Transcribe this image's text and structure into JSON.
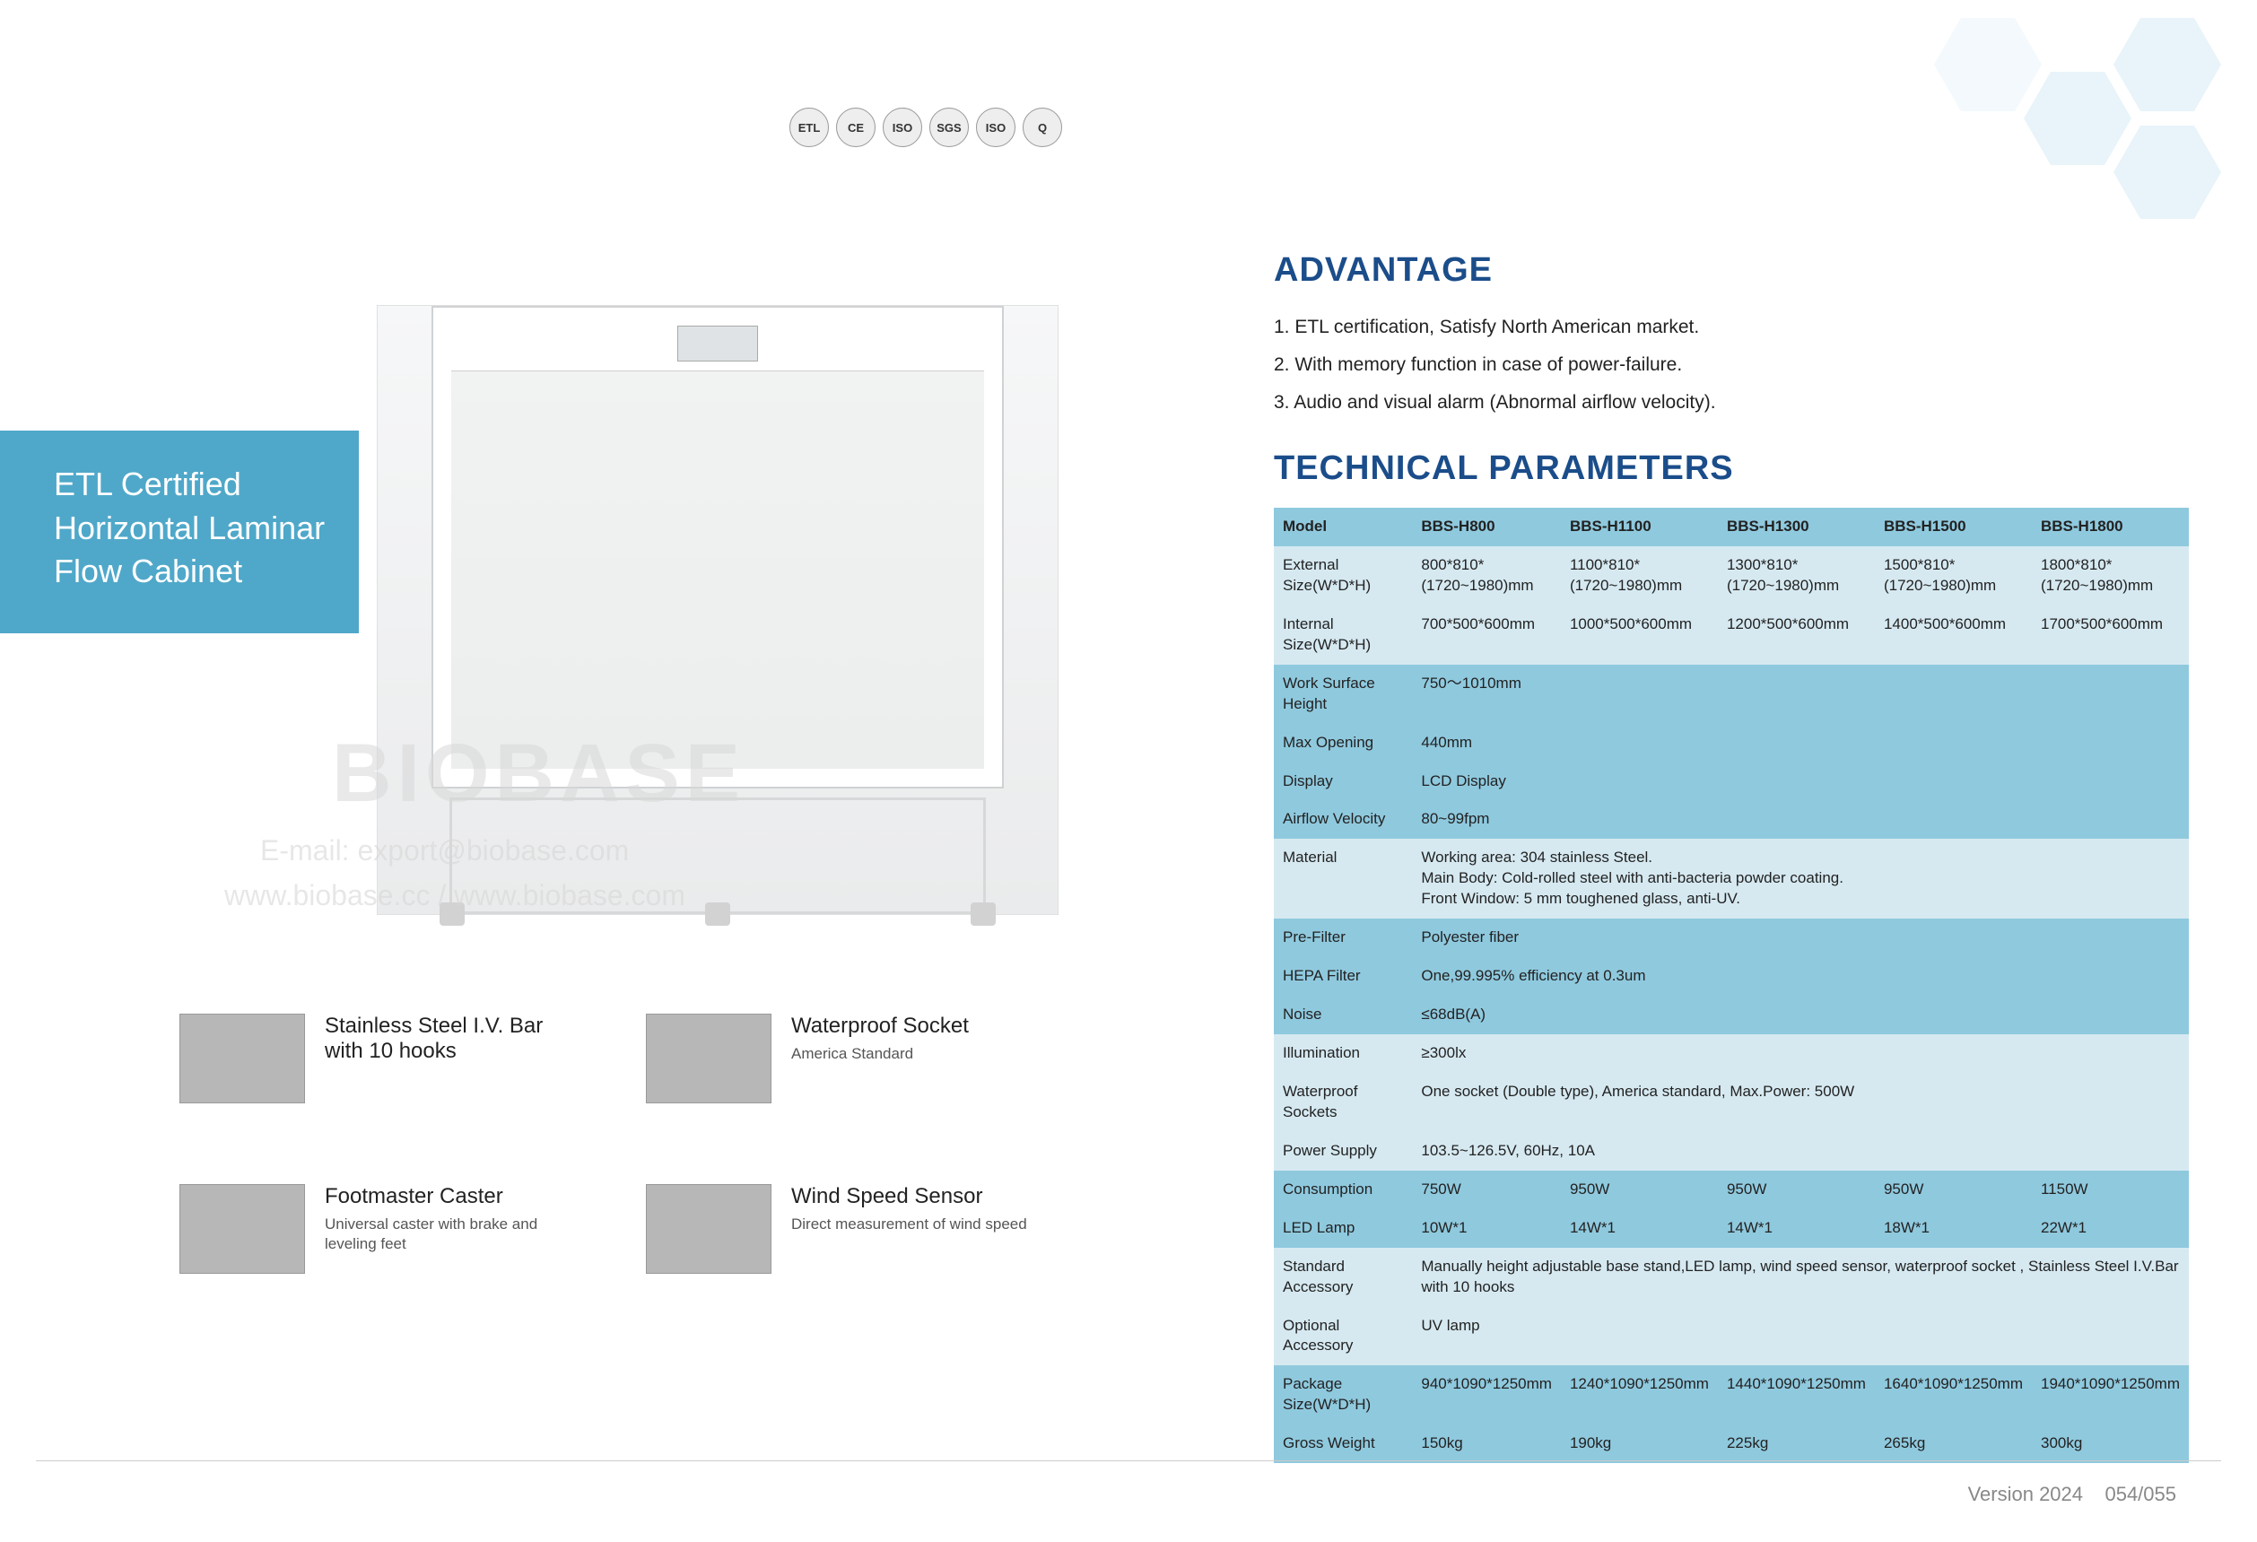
{
  "product_title": "ETL Certified Horizontal Laminar Flow Cabinet",
  "cert_badges": [
    "ETL",
    "CE",
    "ISO",
    "SGS",
    "ISO",
    "Q"
  ],
  "watermark_brand": "BIOBASE",
  "watermark_email": "E-mail: export@biobase.com",
  "watermark_url": "www.biobase.cc / www.biobase.com",
  "features": [
    {
      "title": "Stainless Steel I.V. Bar with 10  hooks",
      "sub": ""
    },
    {
      "title": "Waterproof Socket",
      "sub": "America Standard"
    },
    {
      "title": "Footmaster Caster",
      "sub": "Universal caster with brake and leveling feet"
    },
    {
      "title": "Wind Speed Sensor",
      "sub": "Direct measurement of wind speed"
    }
  ],
  "advantage_heading": "ADVANTAGE",
  "advantages": [
    "1. ETL certification, Satisfy North American market.",
    "2. With memory function in case of power-failure.",
    "3. Audio and visual alarm (Abnormal airflow velocity)."
  ],
  "tech_heading": "TECHNICAL PARAMETERS",
  "table": {
    "band_color_A": "#8fc9de",
    "band_color_B": "#d6e9f1",
    "header": [
      "Model",
      "BBS-H800",
      "BBS-H1100",
      "BBS-H1300",
      "BBS-H1500",
      "BBS-H1800"
    ],
    "rows": [
      {
        "band": "B",
        "label": "External Size(W*D*H)",
        "cells": [
          "800*810* (1720~1980)mm",
          "1100*810* (1720~1980)mm",
          "1300*810* (1720~1980)mm",
          "1500*810* (1720~1980)mm",
          "1800*810* (1720~1980)mm"
        ]
      },
      {
        "band": "B",
        "label": "Internal Size(W*D*H)",
        "cells": [
          "700*500*600mm",
          "1000*500*600mm",
          "1200*500*600mm",
          "1400*500*600mm",
          "1700*500*600mm"
        ]
      },
      {
        "band": "A",
        "label": "Work Surface Height",
        "full": "750～1010mm"
      },
      {
        "band": "A",
        "label": "Max Opening",
        "full": "440mm"
      },
      {
        "band": "A",
        "label": "Display",
        "full": "LCD Display"
      },
      {
        "band": "A",
        "label": "Airflow Velocity",
        "full": "80~99fpm"
      },
      {
        "band": "B",
        "label": "Material",
        "full": "Working area: 304 stainless Steel.\nMain Body: Cold-rolled steel with anti-bacteria powder coating.\nFront Window: 5 mm toughened glass, anti-UV."
      },
      {
        "band": "A",
        "label": "Pre-Filter",
        "full": "Polyester fiber"
      },
      {
        "band": "A",
        "label": "HEPA Filter",
        "full": "One,99.995% efficiency at 0.3um"
      },
      {
        "band": "A",
        "label": "Noise",
        "full": "≤68dB(A)"
      },
      {
        "band": "B",
        "label": "Illumination",
        "full": "≥300lx"
      },
      {
        "band": "B",
        "label": "Waterproof Sockets",
        "full": "One socket (Double type), America standard,  Max.Power: 500W"
      },
      {
        "band": "B",
        "label": "Power Supply",
        "full": "103.5~126.5V, 60Hz, 10A"
      },
      {
        "band": "A",
        "label": "Consumption",
        "cells": [
          "750W",
          "950W",
          "950W",
          "950W",
          "1150W"
        ]
      },
      {
        "band": "A",
        "label": "LED Lamp",
        "cells": [
          "10W*1",
          "14W*1",
          "14W*1",
          "18W*1",
          "22W*1"
        ]
      },
      {
        "band": "B",
        "label": "Standard Accessory",
        "full": "Manually height adjustable base stand,LED lamp,  wind speed sensor, waterproof socket  , Stainless Steel I.V.Bar with 10 hooks"
      },
      {
        "band": "B",
        "label": "Optional Accessory",
        "full": "UV lamp"
      },
      {
        "band": "A",
        "label": "Package Size(W*D*H)",
        "cells": [
          "940*1090*1250mm",
          "1240*1090*1250mm",
          "1440*1090*1250mm",
          "1640*1090*1250mm",
          "1940*1090*1250mm"
        ]
      },
      {
        "band": "A",
        "label": "Gross Weight",
        "cells": [
          "150kg",
          "190kg",
          "225kg",
          "265kg",
          "300kg"
        ]
      }
    ]
  },
  "footer_version": "Version 2024",
  "footer_pages": "054/055"
}
